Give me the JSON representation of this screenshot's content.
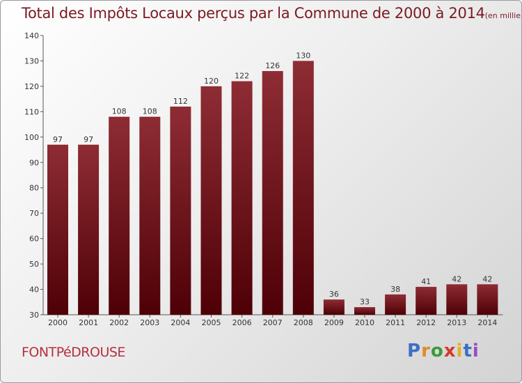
{
  "title": "Total des Impôts Locaux perçus par la Commune de 2000 à 2014",
  "unit_note": "(en milliers d'€)",
  "commune": "FONTPéDROUSE",
  "logo": {
    "text": "Proxiti",
    "letter_colors": [
      "#3a6fc4",
      "#e08a2a",
      "#3a9a3a",
      "#d43a2a",
      "#e0b020",
      "#3a6fc4",
      "#9a4ac4"
    ]
  },
  "colors": {
    "bar_top": "#8e2c34",
    "bar_bottom": "#4e0006",
    "title": "#7a1a22"
  },
  "chart_data": {
    "type": "bar",
    "title": "Total des Impôts Locaux perçus par la Commune de 2000 à 2014",
    "ylabel": "en milliers d'€",
    "categories": [
      "2000",
      "2001",
      "2002",
      "2003",
      "2004",
      "2005",
      "2006",
      "2007",
      "2008",
      "2009",
      "2010",
      "2011",
      "2012",
      "2013",
      "2014"
    ],
    "values": [
      97,
      97,
      108,
      108,
      112,
      120,
      122,
      126,
      130,
      36,
      33,
      38,
      41,
      42,
      42
    ],
    "yticks": [
      30,
      40,
      50,
      60,
      70,
      80,
      90,
      100,
      110,
      120,
      130,
      140
    ],
    "ylim": [
      30,
      140
    ],
    "grid": false
  }
}
